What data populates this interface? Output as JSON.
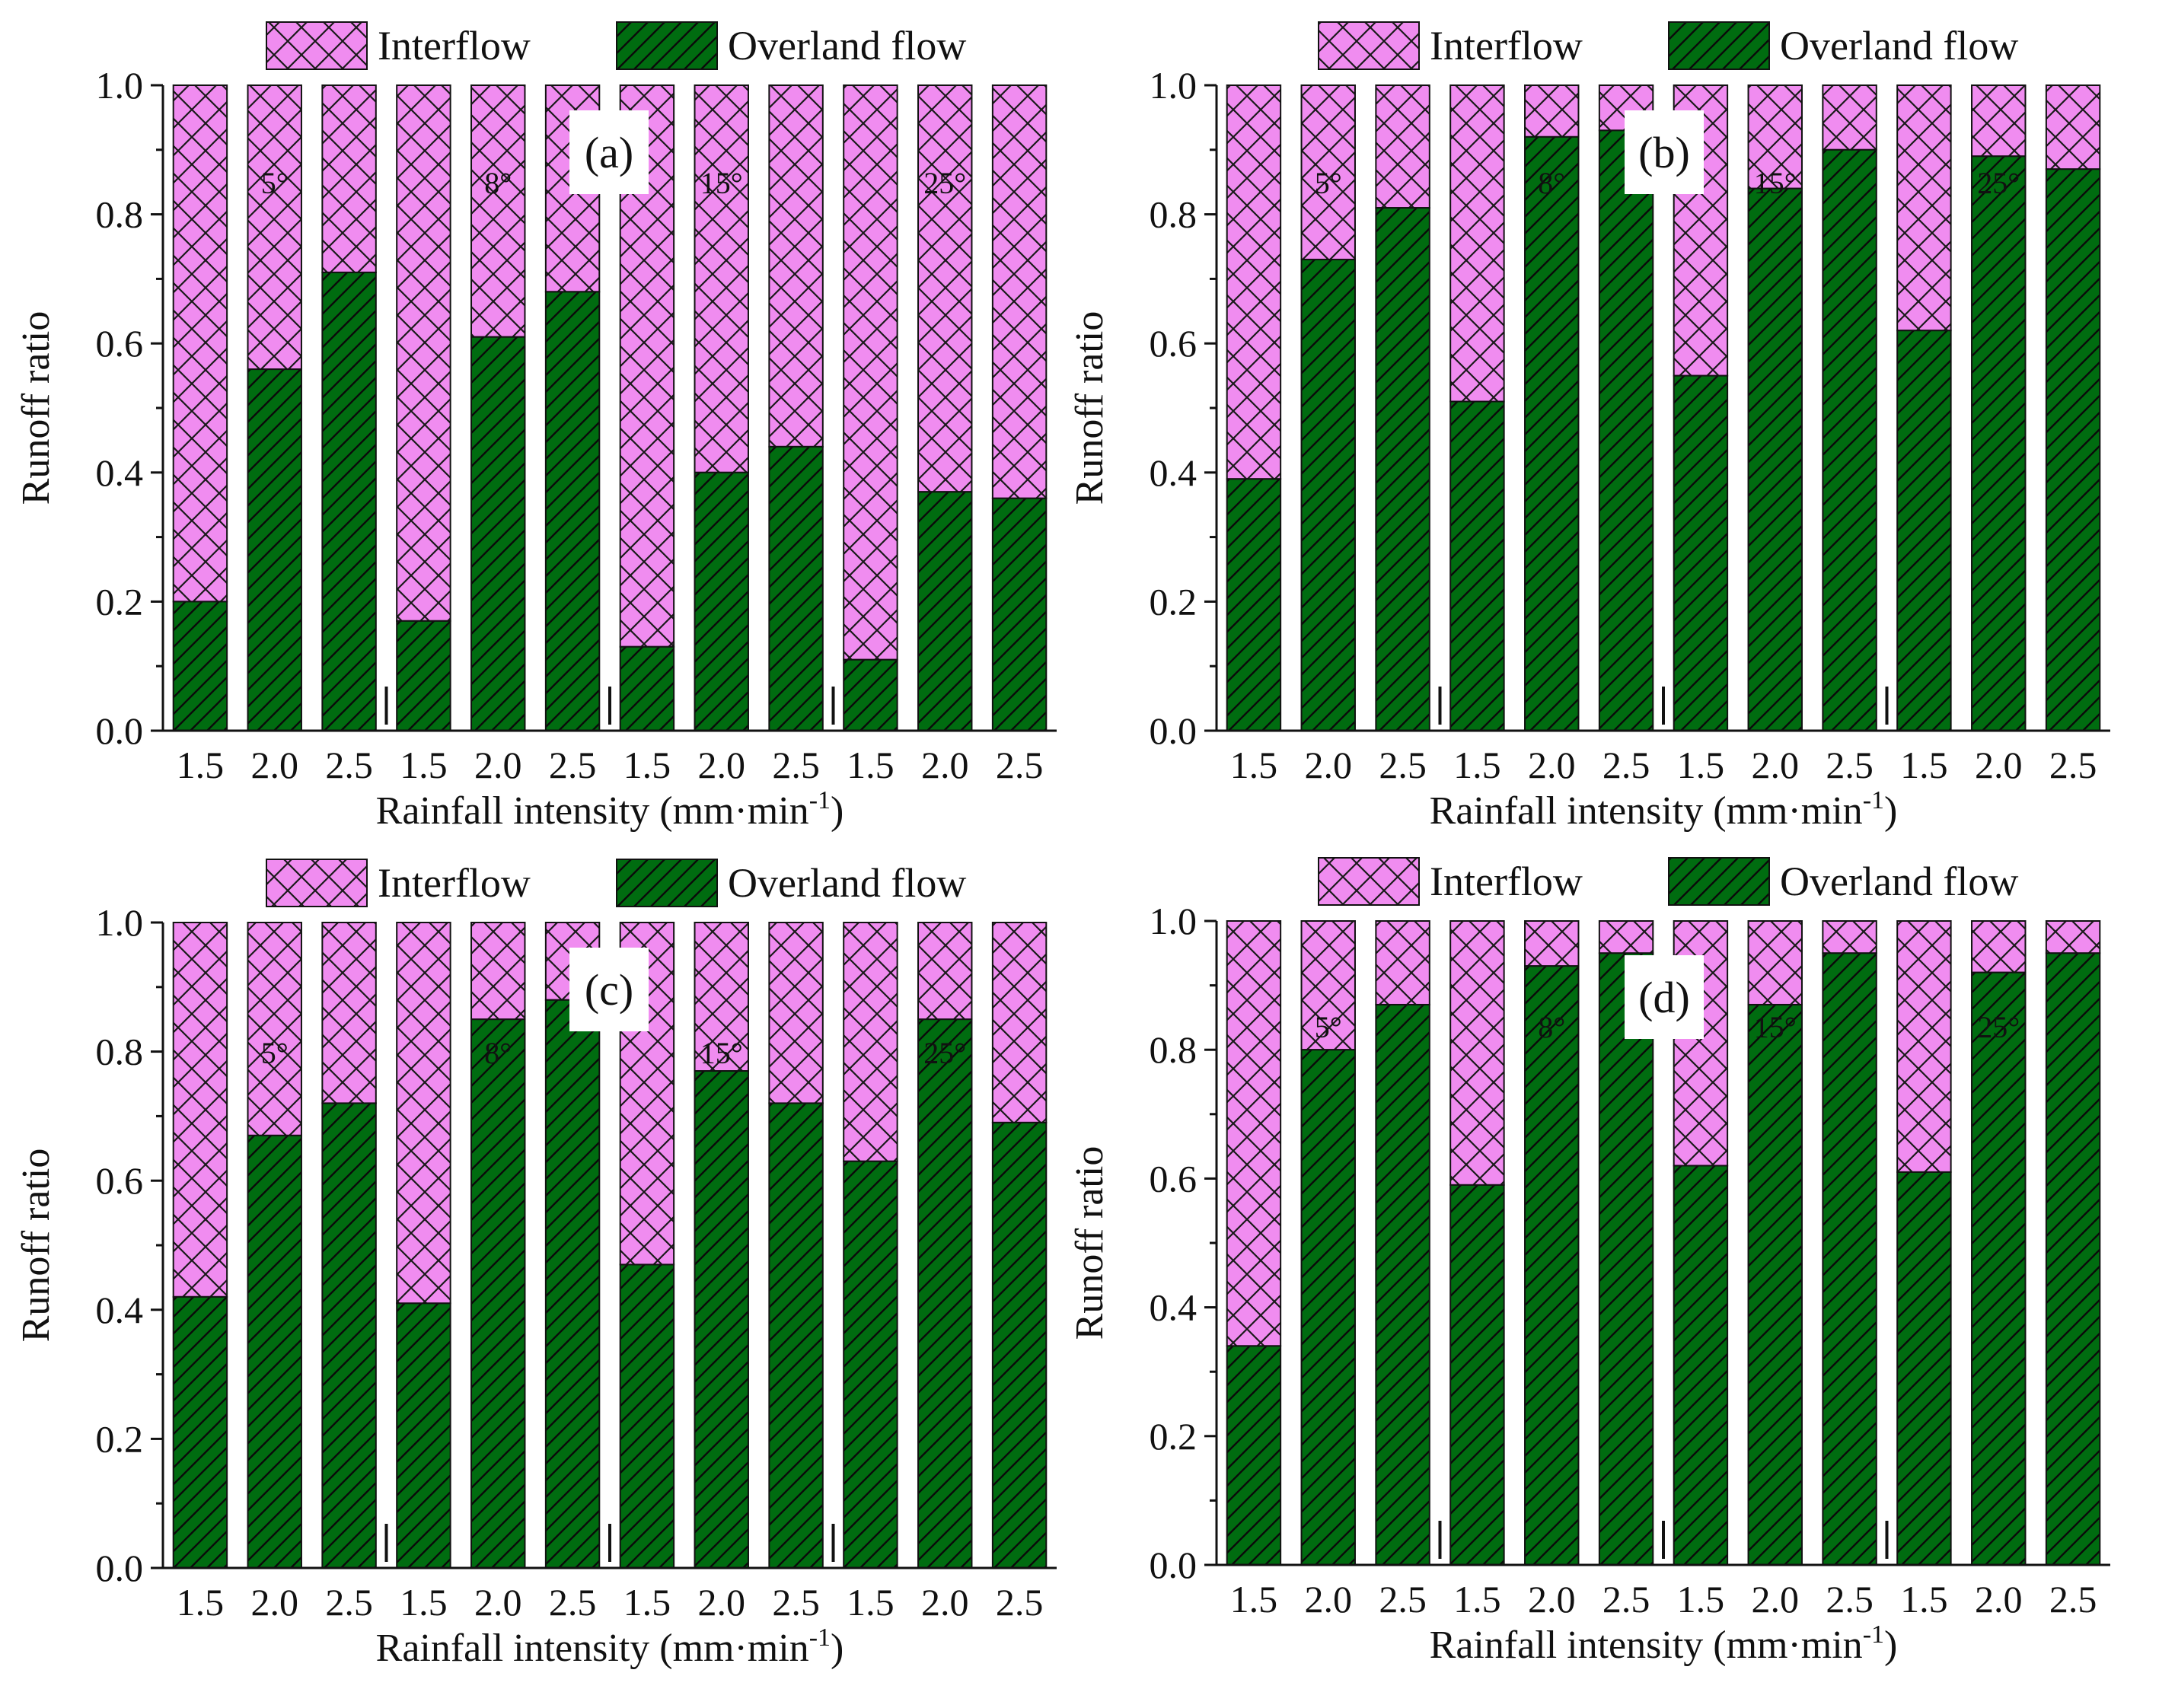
{
  "colors": {
    "overland_fill": "#006c10",
    "interflow_fill": "#f08cf0",
    "hatch_line": "#0a0a0a"
  },
  "chart_data": [
    {
      "type": "bar",
      "stacked": true,
      "panel_label": "(a)",
      "xlabel": "Rainfall intensity  (mm·min",
      "xlabel_sup": "-1",
      "xlabel_end": ")",
      "ylabel": "Runoff ratio",
      "ylim": [
        0,
        1.0
      ],
      "yticks": [
        "0.0",
        "0.2",
        "0.4",
        "0.6",
        "0.8",
        "1.0"
      ],
      "categories": [
        "1.5",
        "2.0",
        "2.5",
        "1.5",
        "2.0",
        "2.5",
        "1.5",
        "2.0",
        "2.5",
        "1.5",
        "2.0",
        "2.5"
      ],
      "groups": [
        "5°",
        "8°",
        "15°",
        "25°"
      ],
      "legend": [
        "Interflow",
        "Overland flow"
      ],
      "series": [
        {
          "name": "Overland flow",
          "values": [
            0.2,
            0.56,
            0.71,
            0.17,
            0.61,
            0.68,
            0.13,
            0.4,
            0.44,
            0.11,
            0.37,
            0.36
          ]
        },
        {
          "name": "Interflow",
          "values": [
            0.8,
            0.44,
            0.29,
            0.83,
            0.39,
            0.32,
            0.87,
            0.6,
            0.56,
            0.89,
            0.63,
            0.64
          ]
        }
      ]
    },
    {
      "type": "bar",
      "stacked": true,
      "panel_label": "(b)",
      "xlabel": "Rainfall intensity  (mm·min",
      "xlabel_sup": "-1",
      "xlabel_end": ")",
      "ylabel": "Runoff ratio",
      "ylim": [
        0,
        1.0
      ],
      "yticks": [
        "0.0",
        "0.2",
        "0.4",
        "0.6",
        "0.8",
        "1.0"
      ],
      "categories": [
        "1.5",
        "2.0",
        "2.5",
        "1.5",
        "2.0",
        "2.5",
        "1.5",
        "2.0",
        "2.5",
        "1.5",
        "2.0",
        "2.5"
      ],
      "groups": [
        "5°",
        "8°",
        "15°",
        "25°"
      ],
      "legend": [
        "Interflow",
        "Overland flow"
      ],
      "series": [
        {
          "name": "Overland flow",
          "values": [
            0.39,
            0.73,
            0.81,
            0.51,
            0.92,
            0.93,
            0.55,
            0.84,
            0.9,
            0.62,
            0.89,
            0.87
          ]
        },
        {
          "name": "Interflow",
          "values": [
            0.61,
            0.27,
            0.19,
            0.49,
            0.08,
            0.07,
            0.45,
            0.16,
            0.1,
            0.38,
            0.11,
            0.13
          ]
        }
      ]
    },
    {
      "type": "bar",
      "stacked": true,
      "panel_label": "(c)",
      "xlabel": "Rainfall intensity  (mm·min",
      "xlabel_sup": "-1",
      "xlabel_end": ")",
      "ylabel": "Runoff ratio",
      "ylim": [
        0,
        1.0
      ],
      "yticks": [
        "0.0",
        "0.2",
        "0.4",
        "0.6",
        "0.8",
        "1.0"
      ],
      "categories": [
        "1.5",
        "2.0",
        "2.5",
        "1.5",
        "2.0",
        "2.5",
        "1.5",
        "2.0",
        "2.5",
        "1.5",
        "2.0",
        "2.5"
      ],
      "groups": [
        "5°",
        "8°",
        "15°",
        "25°"
      ],
      "legend": [
        "Interflow",
        "Overland flow"
      ],
      "series": [
        {
          "name": "Overland flow",
          "values": [
            0.42,
            0.67,
            0.72,
            0.41,
            0.85,
            0.88,
            0.47,
            0.77,
            0.72,
            0.63,
            0.85,
            0.69
          ]
        },
        {
          "name": "Interflow",
          "values": [
            0.58,
            0.33,
            0.28,
            0.59,
            0.15,
            0.12,
            0.53,
            0.23,
            0.28,
            0.37,
            0.15,
            0.31
          ]
        }
      ]
    },
    {
      "type": "bar",
      "stacked": true,
      "panel_label": "(d)",
      "xlabel": "Rainfall intensity  (mm·min",
      "xlabel_sup": "-1",
      "xlabel_end": ")",
      "ylabel": "Runoff ratio",
      "ylim": [
        0,
        1.0
      ],
      "yticks": [
        "0.0",
        "0.2",
        "0.4",
        "0.6",
        "0.8",
        "1.0"
      ],
      "categories": [
        "1.5",
        "2.0",
        "2.5",
        "1.5",
        "2.0",
        "2.5",
        "1.5",
        "2.0",
        "2.5",
        "1.5",
        "2.0",
        "2.5"
      ],
      "groups": [
        "5°",
        "8°",
        "15°",
        "25°"
      ],
      "legend": [
        "Interflow",
        "Overland flow"
      ],
      "series": [
        {
          "name": "Overland flow",
          "values": [
            0.34,
            0.8,
            0.87,
            0.59,
            0.93,
            0.95,
            0.62,
            0.87,
            0.95,
            0.61,
            0.92,
            0.95
          ]
        },
        {
          "name": "Interflow",
          "values": [
            0.66,
            0.2,
            0.13,
            0.41,
            0.07,
            0.05,
            0.38,
            0.13,
            0.05,
            0.39,
            0.08,
            0.05
          ]
        }
      ]
    }
  ]
}
